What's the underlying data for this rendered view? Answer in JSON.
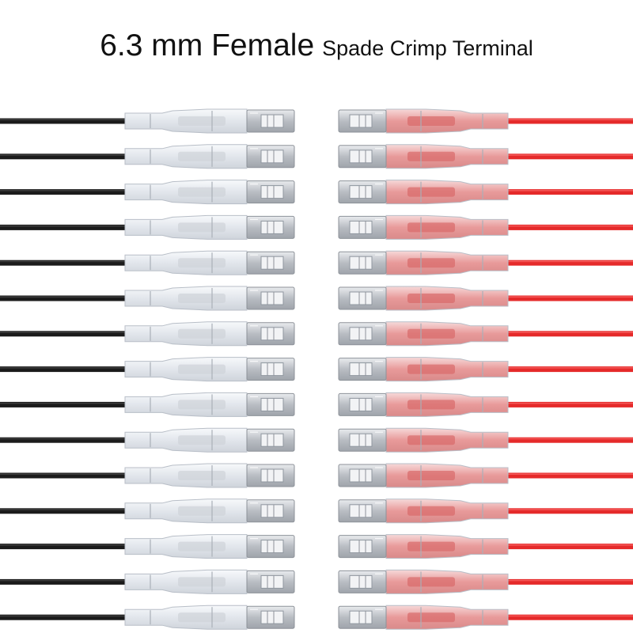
{
  "title": {
    "main": "6.3 mm Female",
    "sub": "Spade Crimp Terminal"
  },
  "terminals": {
    "left_count": 15,
    "right_count": 15,
    "left_wire_color": "#1b1b1b",
    "right_wire_color": "#e52a2a",
    "sleeve_color": "#eef1f5",
    "metal_color": "#c9ccd1"
  }
}
